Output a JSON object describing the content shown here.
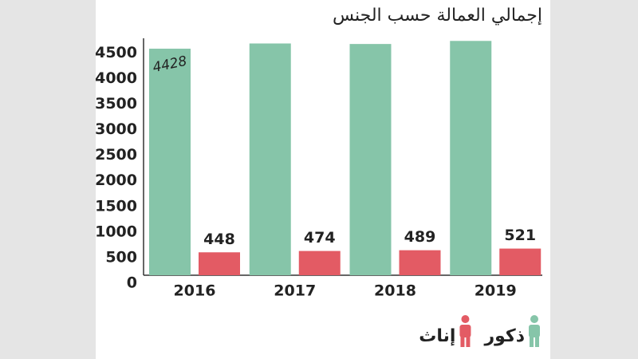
{
  "chart_data": {
    "type": "bar",
    "title": "إجمالي العمالة حسب الجنس",
    "categories": [
      "2016",
      "2017",
      "2018",
      "2019"
    ],
    "series": [
      {
        "name": "ذكور",
        "color": "#86c5a9",
        "values": [
          4428,
          4530,
          4520,
          4580
        ],
        "value_labels": [
          "4428",
          null,
          null,
          null
        ]
      },
      {
        "name": "إناث",
        "color": "#e35b64",
        "values": [
          448,
          474,
          489,
          521
        ]
      }
    ],
    "ylim": [
      0,
      4600
    ],
    "yticks": [
      0,
      500,
      1000,
      1500,
      2000,
      2500,
      3000,
      3500,
      4000,
      4500
    ],
    "legend": "bottom-right"
  }
}
